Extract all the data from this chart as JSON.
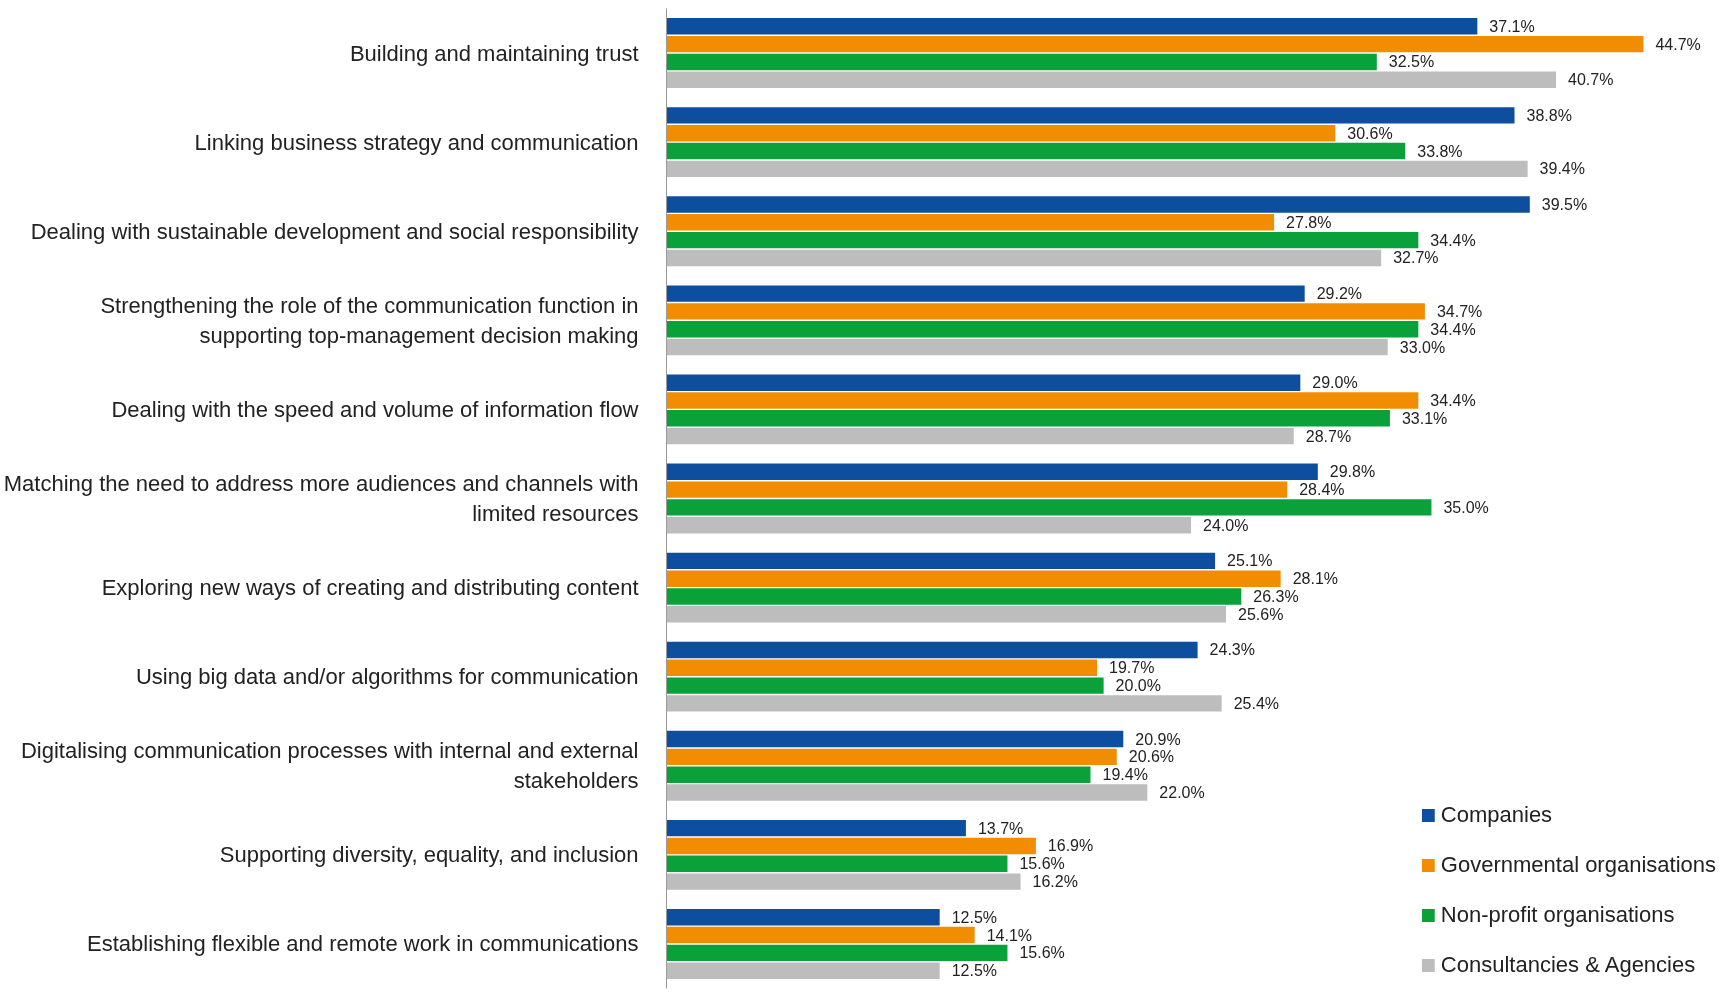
{
  "chart_data": {
    "type": "bar",
    "orientation": "horizontal",
    "data_labels": true,
    "legend": "bottom right",
    "grid": false,
    "categories": [
      "Building and maintaining trust",
      "Linking business strategy and communication",
      "Dealing with sustainable development and social responsibility",
      "Strengthening the role of the communication function in supporting top-management decision making",
      "Dealing with the speed and volume of information flow",
      "Matching the need to address more audiences and channels with limited resources",
      "Exploring new ways of creating and distributing content",
      "Using big data and/or algorithms for communication",
      "Digitalising communication processes with internal and external stakeholders",
      "Supporting diversity, equality, and inclusion",
      "Establishing flexible and remote work in communications"
    ],
    "series": [
      {
        "name": "Companies",
        "color": "#0d4f9e",
        "values": [
          37.1,
          38.8,
          39.5,
          29.2,
          29.0,
          29.8,
          25.1,
          24.3,
          20.9,
          13.7,
          12.5
        ],
        "value_labels": [
          "37.1%",
          "38.8%",
          "39.5%",
          "29.2%",
          "29.0%",
          "29.8%",
          "25.1%",
          "24.3%",
          "20.9%",
          "13.7%",
          "12.5%"
        ]
      },
      {
        "name": "Governmental organisations",
        "color": "#f28c00",
        "values": [
          44.7,
          30.6,
          27.8,
          34.7,
          34.4,
          28.4,
          28.1,
          19.7,
          20.6,
          16.9,
          14.1
        ],
        "value_labels": [
          "44.7%",
          "30.6%",
          "27.8%",
          "34.7%",
          "34.4%",
          "28.4%",
          "28.1%",
          "19.7%",
          "20.6%",
          "16.9%",
          "14.1%"
        ]
      },
      {
        "name": "Non-profit organisations",
        "color": "#0aa13a",
        "values": [
          32.5,
          33.8,
          34.4,
          34.4,
          33.1,
          35.0,
          26.3,
          20.0,
          19.4,
          15.6,
          15.6
        ],
        "value_labels": [
          "32.5%",
          "33.8%",
          "34.4%",
          "34.4%",
          "33.1%",
          "35.0%",
          "26.3%",
          "20.0%",
          "19.4%",
          "15.6%",
          "15.6%"
        ]
      },
      {
        "name": "Consultancies & Agencies",
        "color": "#bdbdbd",
        "values": [
          40.7,
          39.4,
          32.7,
          33.0,
          28.7,
          24.0,
          25.6,
          25.4,
          22.0,
          16.2,
          12.5
        ],
        "value_labels": [
          "40.7%",
          "39.4%",
          "32.7%",
          "33.0%",
          "28.7%",
          "24.0%",
          "25.6%",
          "25.4%",
          "22.0%",
          "16.2%",
          "12.5%"
        ]
      }
    ]
  }
}
